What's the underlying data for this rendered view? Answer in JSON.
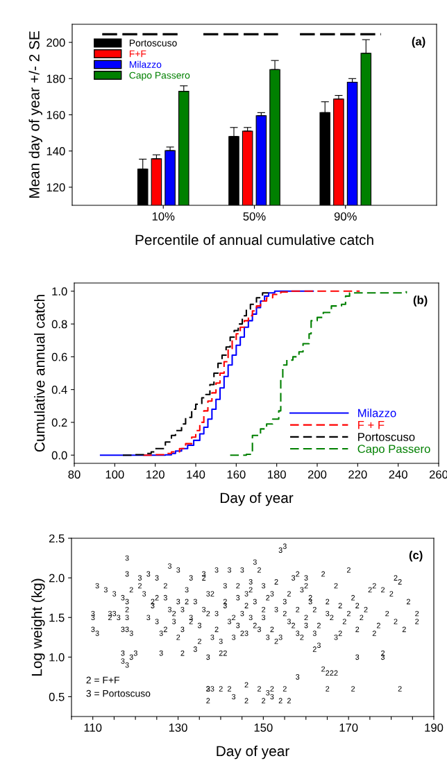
{
  "chart_data": [
    {
      "type": "bar",
      "ylabel": "Mean day of year +/- 2 SE",
      "xlabel": "Percentile of annual cumulative catch",
      "annotations": [
        "(a)"
      ],
      "categories": [
        "10%",
        "50%",
        "90%"
      ],
      "ylim": [
        110,
        210
      ],
      "yticks": [
        120,
        140,
        160,
        180,
        200
      ],
      "grid": false,
      "legend": "top left",
      "series": [
        {
          "name": "Portoscuso",
          "color": "#000000",
          "values": [
            130,
            148,
            161.2
          ],
          "errors": [
            [
              130,
              135.5
            ],
            [
              148,
              153
            ],
            [
              161.2,
              167.2
            ]
          ]
        },
        {
          "name": "F+F",
          "color": "#ff0000",
          "values": [
            135.7,
            151,
            168.7
          ],
          "errors": [
            [
              135.7,
              137.9
            ],
            [
              151,
              153
            ],
            [
              168.7,
              170.7
            ]
          ]
        },
        {
          "name": "Milazzo",
          "color": "#0000ff",
          "values": [
            140.2,
            159.5,
            178
          ],
          "errors": [
            [
              140.2,
              142.2
            ],
            [
              159.5,
              161.2
            ],
            [
              178,
              180
            ]
          ]
        },
        {
          "name": "Capo Passero",
          "color": "#008000",
          "values": [
            173,
            185,
            194
          ],
          "errors": [
            [
              173,
              176
            ],
            [
              185,
              190
            ],
            [
              194,
              201.5
            ]
          ]
        }
      ]
    },
    {
      "type": "step",
      "ylabel": "Cumulative annual catch",
      "xlabel": "Day of year",
      "annotations": [
        "(b)"
      ],
      "xlim": [
        80,
        260
      ],
      "xticks": [
        80,
        100,
        120,
        140,
        160,
        180,
        200,
        220,
        240,
        260
      ],
      "ylim": [
        -0.05,
        1.05
      ],
      "yticks": [
        {
          "value": 0,
          "label": "0.0"
        },
        0.2,
        0.4,
        0.6,
        0.8,
        {
          "value": 1,
          "label": "1.0"
        }
      ],
      "grid": false,
      "legend": "bottom right",
      "series": [
        {
          "name": "Milazzo",
          "color": "#0000ff",
          "line_style": "solid",
          "x": [
            93,
            125,
            128,
            130,
            133,
            136,
            139,
            142,
            144,
            146,
            148,
            150,
            152,
            154,
            156,
            158,
            160,
            162,
            164,
            166,
            168,
            170,
            172,
            174,
            176,
            179,
            198
          ],
          "values": [
            0,
            0.002,
            0.01,
            0.025,
            0.04,
            0.06,
            0.09,
            0.13,
            0.17,
            0.22,
            0.28,
            0.34,
            0.41,
            0.48,
            0.55,
            0.61,
            0.67,
            0.72,
            0.78,
            0.82,
            0.86,
            0.9,
            0.94,
            0.97,
            0.99,
            1.0,
            1.0
          ]
        },
        {
          "name": "F + F",
          "color": "#ff0000",
          "line_style": "dashed",
          "x": [
            114,
            120,
            125,
            128,
            132,
            135,
            138,
            140,
            142,
            144,
            146,
            148,
            150,
            152,
            154,
            156,
            158,
            160,
            162,
            164,
            166,
            168,
            170,
            172,
            175,
            178,
            182,
            186,
            221
          ],
          "values": [
            0,
            0.003,
            0.01,
            0.02,
            0.04,
            0.07,
            0.11,
            0.15,
            0.2,
            0.27,
            0.33,
            0.38,
            0.44,
            0.5,
            0.57,
            0.65,
            0.7,
            0.74,
            0.78,
            0.82,
            0.85,
            0.88,
            0.91,
            0.94,
            0.96,
            0.98,
            0.995,
            1.0,
            1.0
          ]
        },
        {
          "name": "Portoscuso",
          "color": "#000000",
          "line_style": "dashed",
          "x": [
            104,
            110,
            115,
            118,
            120,
            125,
            128,
            130,
            133,
            135,
            138,
            140,
            143,
            145,
            147,
            149,
            151,
            153,
            155,
            157,
            159,
            161,
            163,
            165,
            167,
            170,
            173,
            176
          ],
          "values": [
            0,
            0.003,
            0.01,
            0.02,
            0.04,
            0.08,
            0.12,
            0.15,
            0.19,
            0.23,
            0.28,
            0.31,
            0.35,
            0.37,
            0.43,
            0.5,
            0.56,
            0.61,
            0.66,
            0.72,
            0.76,
            0.8,
            0.85,
            0.89,
            0.92,
            0.96,
            0.99,
            1.0
          ]
        },
        {
          "name": "Capo Passero",
          "color": "#008000",
          "line_style": "dashed",
          "x": [
            157,
            165,
            168,
            172,
            175,
            178,
            181,
            182,
            183,
            185,
            188,
            191,
            193,
            196,
            197,
            200,
            203,
            207,
            212,
            214,
            216,
            230,
            244
          ],
          "values": [
            0,
            0.005,
            0.12,
            0.16,
            0.19,
            0.22,
            0.27,
            0.47,
            0.55,
            0.58,
            0.6,
            0.63,
            0.68,
            0.74,
            0.82,
            0.84,
            0.87,
            0.91,
            0.92,
            0.97,
            0.99,
            0.99,
            1.0
          ]
        }
      ]
    },
    {
      "type": "scatter",
      "ylabel": "Log weight (kg)",
      "xlabel": "Day of year",
      "annotations": [
        "(c)",
        "2 = F+F",
        "3 = Portoscuso"
      ],
      "xlim": [
        105,
        190
      ],
      "ylim": [
        0.25,
        2.5
      ],
      "xticks": [
        {
          "value": 105,
          "label": null
        },
        110,
        {
          "value": 115,
          "label": null
        },
        {
          "value": 120,
          "label": null
        },
        {
          "value": 125,
          "label": null
        },
        130,
        {
          "value": 135,
          "label": null
        },
        {
          "value": 140,
          "label": null
        },
        {
          "value": 145,
          "label": null
        },
        150,
        {
          "value": 155,
          "label": null
        },
        {
          "value": 160,
          "label": null
        },
        {
          "value": 165,
          "label": null
        },
        170,
        {
          "value": 175,
          "label": null
        },
        {
          "value": 180,
          "label": null
        },
        {
          "value": 185,
          "label": null
        },
        190
      ],
      "yticks": [
        0.5,
        {
          "value": 1,
          "label": "1.0"
        },
        1.5,
        {
          "value": 2,
          "label": "2.0"
        },
        2.5
      ],
      "grid": false,
      "series": [
        {
          "color": "#000000",
          "x": [
            114,
            118,
            119,
            121,
            124,
            125,
            127,
            127,
            129,
            130,
            131,
            132,
            133,
            135,
            136,
            137,
            137,
            137,
            138,
            139,
            140,
            140,
            141,
            141,
            142,
            143,
            144,
            145,
            146,
            146,
            146,
            147,
            148,
            149,
            149,
            150,
            150,
            151,
            152,
            152,
            153,
            153,
            154,
            155,
            155,
            156,
            156,
            157,
            158,
            158,
            159,
            160,
            160,
            161,
            162,
            162,
            163,
            164,
            164,
            165,
            165,
            165,
            166,
            166,
            167,
            167,
            168,
            168,
            169,
            170,
            170,
            171,
            171,
            172,
            172,
            173,
            174,
            175,
            176,
            176,
            177,
            178,
            178,
            179,
            180,
            181,
            181,
            182,
            182,
            183,
            184,
            186,
            186
          ],
          "values": [
            1.5,
            1.6,
            1.85,
            1.9,
            1.7,
            1.75,
            1.35,
            1.9,
            1.55,
            1.25,
            1.05,
            1.7,
            1.45,
            1.2,
            2.0,
            1.55,
            0.6,
            0.45,
            1.8,
            1.35,
            1.05,
            0.6,
            1.05,
            1.7,
            0.6,
            1.5,
            1.9,
            1.3,
            0.65,
            0.45,
            1.65,
            1.85,
            1.4,
            2.1,
            0.6,
            0.45,
            1.6,
            1.75,
            0.6,
            1.35,
            1.2,
            1.95,
            0.45,
            0.6,
            1.55,
            0.45,
            1.8,
            1.4,
            2.05,
            1.6,
            1.25,
            1.9,
            1.5,
            1.75,
            1.1,
            1.6,
            1.4,
            0.85,
            2.05,
            0.8,
            0.6,
            1.7,
            0.8,
            1.5,
            0.8,
            1.9,
            1.3,
            1.65,
            1.45,
            2.1,
            1.55,
            0.6,
            1.75,
            1.65,
            1.35,
            1.5,
            1.6,
            1.85,
            1.9,
            1.3,
            1.4,
            1.85,
            1.05,
            1.55,
            1.8,
            2.0,
            1.45,
            1.95,
            0.6,
            1.35,
            1.7,
            1.55,
            1.45
          ]
        },
        {
          "color": "#000000",
          "x": [
            110,
            110,
            111,
            110,
            111,
            113,
            114,
            115,
            115,
            116,
            117,
            117,
            117,
            117,
            118,
            118,
            118,
            118,
            118,
            119,
            119,
            120,
            118,
            121,
            122,
            123,
            123,
            124,
            125,
            125,
            126,
            126,
            127,
            128,
            128,
            129,
            130,
            130,
            131,
            131,
            132,
            133,
            133,
            134,
            134,
            135,
            136,
            136,
            137,
            137,
            138,
            138,
            139,
            139,
            140,
            141,
            141,
            142,
            142,
            143,
            144,
            144,
            145,
            145,
            146,
            146,
            147,
            147,
            148,
            148,
            149,
            150,
            150,
            151,
            151,
            152,
            152,
            153,
            154,
            154,
            155,
            155,
            156,
            157,
            158,
            158,
            159,
            160,
            160,
            161,
            162,
            163,
            165,
            167,
            172,
            178,
            143,
            137
          ],
          "values": [
            1.5,
            1.35,
            1.3,
            1.55,
            1.9,
            1.85,
            1.55,
            1.55,
            1.8,
            1.5,
            1.75,
            1.35,
            1.05,
            0.95,
            2.25,
            2.05,
            1.7,
            1.5,
            1.35,
            1.3,
            1.0,
            1.05,
            0.9,
            2.0,
            1.8,
            2.05,
            1.5,
            1.65,
            2.0,
            1.45,
            1.3,
            1.05,
            1.75,
            2.15,
            1.6,
            1.45,
            2.1,
            1.7,
            1.6,
            1.35,
            1.85,
            2.0,
            1.5,
            1.1,
            1.7,
            1.4,
            2.05,
            1.6,
            1.0,
            1.8,
            1.25,
            0.6,
            2.1,
            1.55,
            1.2,
            1.65,
            1.9,
            2.1,
            1.45,
            1.25,
            1.4,
            1.75,
            2.1,
            1.55,
            1.8,
            1.3,
            1.95,
            1.5,
            2.2,
            1.7,
            1.35,
            1.5,
            1.9,
            0.55,
            1.25,
            1.8,
            0.5,
            1.6,
            2.35,
            1.25,
            2.4,
            1.7,
            1.45,
            2.0,
            1.3,
            0.75,
            1.85,
            2.0,
            1.4,
            1.7,
            1.3,
            1.15,
            1.55,
            1.25,
            1.0,
            1.0,
            0.5,
            0.6
          ]
        }
      ]
    }
  ]
}
